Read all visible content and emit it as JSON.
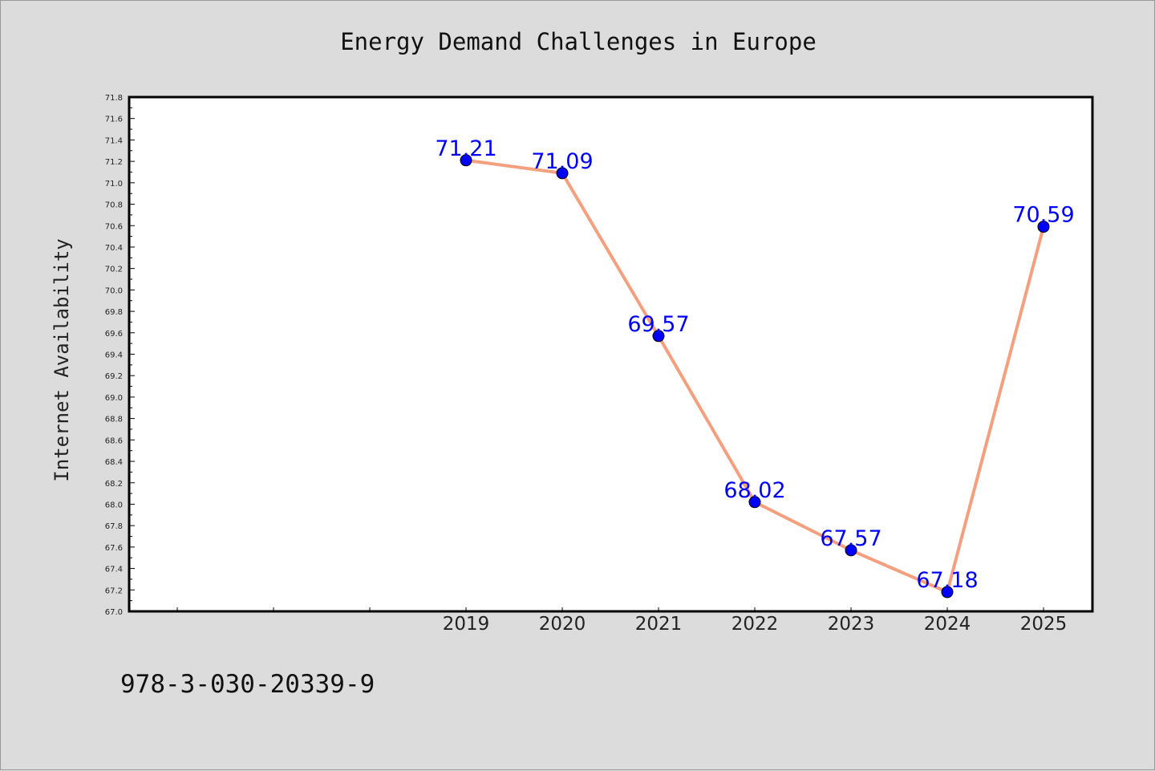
{
  "chart_data": {
    "type": "line",
    "title": "Energy Demand Challenges in Europe",
    "xlabel": "",
    "ylabel": "Internet Availability",
    "categories": [
      "2019",
      "2020",
      "2021",
      "2022",
      "2023",
      "2024",
      "2025"
    ],
    "series": [
      {
        "values": [
          71.21,
          71.09,
          69.57,
          68.02,
          67.57,
          67.18,
          70.59
        ],
        "data_labels": [
          "71.21",
          "71.09",
          "69.57",
          "68.02",
          "67.57",
          "67.18",
          "70.59"
        ]
      }
    ],
    "ylim": [
      67.0,
      71.8
    ],
    "yticks": [
      "67.0",
      "67.2",
      "67.4",
      "67.6",
      "67.8",
      "68.0",
      "68.2",
      "68.4",
      "68.6",
      "68.8",
      "69.0",
      "69.2",
      "69.4",
      "69.6",
      "69.8",
      "70.0",
      "70.2",
      "70.4",
      "70.6",
      "70.8",
      "71.0",
      "71.2",
      "71.4",
      "71.6",
      "71.8"
    ],
    "grid": false,
    "line_color": "#f4a07f",
    "marker_color": "#0000ff",
    "label_color": "#0000ff"
  },
  "footer": {
    "code": "978-3-030-20339-9"
  }
}
